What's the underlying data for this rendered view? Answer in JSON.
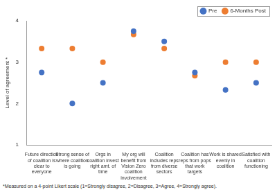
{
  "chart_data": {
    "type": "scatter",
    "y_label": "Level of agreement *",
    "annotations": [
      "*Measured on a 4-point Likert scale (1=Strongly disagree, 2=Disagree, 3=Agree, 4=Strongly agree)."
    ],
    "categories": [
      "Future direction of coalition is clear to everyone",
      "Strong sense of where coalition is going",
      "Orgs in coalition invest right amt. of time",
      "My org will benefit from Vision Zero coalition involvement",
      "Coalition includes reps from diverse sectors",
      "Coalition has reps from pops that work targets",
      "Work is shared evenly in coalition",
      "Satisfied with coalition functioning"
    ],
    "series": [
      {
        "name": "Pre",
        "color": "#4472c4",
        "marker": "circle",
        "values": [
          2.75,
          2.0,
          2.5,
          3.75,
          3.5,
          2.75,
          2.33,
          2.5
        ]
      },
      {
        "name": "6-Months Post",
        "color": "#ed7d31",
        "marker": "circle",
        "values": [
          3.33,
          3.33,
          3.0,
          3.67,
          3.33,
          2.67,
          3.0,
          3.0
        ]
      }
    ],
    "ylim": [
      1,
      4
    ],
    "yticks": [
      1,
      2,
      3,
      4
    ],
    "grid": false,
    "legend": "top-right"
  }
}
